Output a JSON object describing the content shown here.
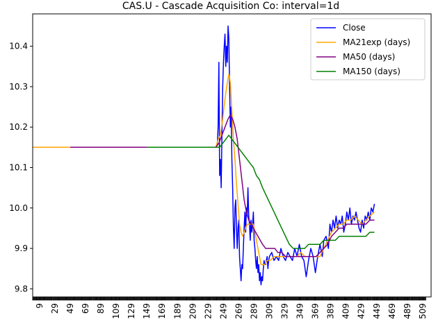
{
  "chart_data": {
    "type": "line",
    "title": "CAS.U - Cascade Acquisition Co: interval=1d",
    "xlabel": "",
    "ylabel": "",
    "xlim": [
      0,
      520
    ],
    "ylim": [
      9.78,
      10.48
    ],
    "x_ticks": [
      9,
      29,
      49,
      69,
      89,
      109,
      129,
      149,
      169,
      189,
      209,
      229,
      249,
      269,
      289,
      309,
      329,
      349,
      369,
      389,
      409,
      429,
      449,
      469,
      489,
      509
    ],
    "y_ticks": [
      9.8,
      9.9,
      10.0,
      10.1,
      10.2,
      10.3,
      10.4
    ],
    "grid": false,
    "legend_position": "top-right",
    "series": [
      {
        "name": "Close",
        "color": "#0000ff",
        "points": [
          [
            239,
            10.15
          ],
          [
            241,
            10.16
          ],
          [
            242,
            10.2
          ],
          [
            243,
            10.36
          ],
          [
            244,
            10.08
          ],
          [
            245,
            10.12
          ],
          [
            246,
            10.05
          ],
          [
            247,
            10.18
          ],
          [
            248,
            10.3
          ],
          [
            249,
            10.36
          ],
          [
            250,
            10.4
          ],
          [
            251,
            10.43
          ],
          [
            252,
            10.35
          ],
          [
            253,
            10.4
          ],
          [
            254,
            10.36
          ],
          [
            255,
            10.45
          ],
          [
            256,
            10.42
          ],
          [
            257,
            10.3
          ],
          [
            258,
            10.2
          ],
          [
            259,
            10.25
          ],
          [
            260,
            10.12
          ],
          [
            261,
            10.05
          ],
          [
            262,
            9.95
          ],
          [
            263,
            9.9
          ],
          [
            264,
            10.0
          ],
          [
            265,
            10.02
          ],
          [
            266,
            9.95
          ],
          [
            267,
            9.9
          ],
          [
            268,
            9.95
          ],
          [
            269,
            9.97
          ],
          [
            270,
            9.88
          ],
          [
            271,
            9.85
          ],
          [
            272,
            9.82
          ],
          [
            273,
            9.86
          ],
          [
            274,
            9.85
          ],
          [
            275,
            9.9
          ],
          [
            276,
            9.95
          ],
          [
            277,
            9.99
          ],
          [
            278,
            9.94
          ],
          [
            279,
            10.0
          ],
          [
            280,
            9.98
          ],
          [
            281,
            10.05
          ],
          [
            282,
            9.98
          ],
          [
            283,
            9.96
          ],
          [
            284,
            9.92
          ],
          [
            285,
            9.97
          ],
          [
            286,
            9.94
          ],
          [
            287,
            9.96
          ],
          [
            288,
            9.99
          ],
          [
            289,
            9.92
          ],
          [
            290,
            9.9
          ],
          [
            291,
            9.87
          ],
          [
            292,
            9.85
          ],
          [
            293,
            9.88
          ],
          [
            294,
            9.84
          ],
          [
            295,
            9.86
          ],
          [
            296,
            9.82
          ],
          [
            297,
            9.84
          ],
          [
            298,
            9.81
          ],
          [
            299,
            9.83
          ],
          [
            300,
            9.82
          ],
          [
            301,
            9.85
          ],
          [
            302,
            9.87
          ],
          [
            303,
            9.86
          ],
          [
            304,
            9.86
          ],
          [
            305,
            9.87
          ],
          [
            306,
            9.88
          ],
          [
            307,
            9.85
          ],
          [
            308,
            9.87
          ],
          [
            309,
            9.88
          ],
          [
            312,
            9.89
          ],
          [
            315,
            9.87
          ],
          [
            318,
            9.88
          ],
          [
            321,
            9.87
          ],
          [
            324,
            9.9
          ],
          [
            327,
            9.88
          ],
          [
            330,
            9.87
          ],
          [
            333,
            9.89
          ],
          [
            336,
            9.88
          ],
          [
            339,
            9.87
          ],
          [
            342,
            9.9
          ],
          [
            345,
            9.88
          ],
          [
            348,
            9.91
          ],
          [
            351,
            9.88
          ],
          [
            354,
            9.87
          ],
          [
            357,
            9.83
          ],
          [
            360,
            9.87
          ],
          [
            363,
            9.9
          ],
          [
            366,
            9.88
          ],
          [
            369,
            9.84
          ],
          [
            372,
            9.88
          ],
          [
            375,
            9.91
          ],
          [
            378,
            9.88
          ],
          [
            380,
            9.92
          ],
          [
            383,
            9.93
          ],
          [
            386,
            9.9
          ],
          [
            388,
            9.96
          ],
          [
            390,
            9.94
          ],
          [
            392,
            9.97
          ],
          [
            394,
            9.95
          ],
          [
            396,
            9.98
          ],
          [
            398,
            9.95
          ],
          [
            400,
            9.97
          ],
          [
            402,
            9.96
          ],
          [
            404,
            9.98
          ],
          [
            406,
            9.94
          ],
          [
            408,
            9.96
          ],
          [
            410,
            9.99
          ],
          [
            412,
            9.97
          ],
          [
            414,
            10.0
          ],
          [
            416,
            9.96
          ],
          [
            418,
            9.98
          ],
          [
            420,
            9.97
          ],
          [
            422,
            9.99
          ],
          [
            424,
            9.97
          ],
          [
            426,
            9.95
          ],
          [
            428,
            9.94
          ],
          [
            430,
            9.97
          ],
          [
            432,
            9.95
          ],
          [
            434,
            9.98
          ],
          [
            436,
            9.97
          ],
          [
            438,
            9.99
          ],
          [
            440,
            9.97
          ],
          [
            442,
            10.0
          ],
          [
            444,
            9.99
          ],
          [
            446,
            10.01
          ]
        ]
      },
      {
        "name": "MA21exp (days)",
        "color": "#ffa500",
        "points": [
          [
            0,
            10.15
          ],
          [
            50,
            10.15
          ],
          [
            100,
            10.15
          ],
          [
            150,
            10.15
          ],
          [
            200,
            10.15
          ],
          [
            239,
            10.15
          ],
          [
            242,
            10.17
          ],
          [
            245,
            10.18
          ],
          [
            248,
            10.22
          ],
          [
            251,
            10.27
          ],
          [
            254,
            10.31
          ],
          [
            256,
            10.33
          ],
          [
            258,
            10.31
          ],
          [
            260,
            10.24
          ],
          [
            262,
            10.17
          ],
          [
            264,
            10.12
          ],
          [
            266,
            10.06
          ],
          [
            268,
            10.01
          ],
          [
            270,
            9.96
          ],
          [
            272,
            9.94
          ],
          [
            274,
            9.93
          ],
          [
            276,
            9.94
          ],
          [
            278,
            9.95
          ],
          [
            280,
            9.96
          ],
          [
            282,
            9.96
          ],
          [
            284,
            9.96
          ],
          [
            286,
            9.96
          ],
          [
            288,
            9.96
          ],
          [
            290,
            9.94
          ],
          [
            292,
            9.92
          ],
          [
            294,
            9.9
          ],
          [
            296,
            9.88
          ],
          [
            298,
            9.86
          ],
          [
            300,
            9.86
          ],
          [
            303,
            9.86
          ],
          [
            306,
            9.87
          ],
          [
            310,
            9.87
          ],
          [
            315,
            9.88
          ],
          [
            320,
            9.88
          ],
          [
            325,
            9.88
          ],
          [
            330,
            9.88
          ],
          [
            335,
            9.88
          ],
          [
            340,
            9.88
          ],
          [
            345,
            9.88
          ],
          [
            350,
            9.89
          ],
          [
            355,
            9.88
          ],
          [
            360,
            9.88
          ],
          [
            365,
            9.88
          ],
          [
            370,
            9.88
          ],
          [
            375,
            9.88
          ],
          [
            380,
            9.9
          ],
          [
            385,
            9.92
          ],
          [
            390,
            9.94
          ],
          [
            395,
            9.95
          ],
          [
            400,
            9.96
          ],
          [
            405,
            9.96
          ],
          [
            410,
            9.97
          ],
          [
            415,
            9.97
          ],
          [
            420,
            9.98
          ],
          [
            425,
            9.97
          ],
          [
            430,
            9.96
          ],
          [
            435,
            9.97
          ],
          [
            440,
            9.98
          ],
          [
            446,
            9.99
          ]
        ]
      },
      {
        "name": "MA50 (days)",
        "color": "#800080",
        "points": [
          [
            49,
            10.15
          ],
          [
            100,
            10.15
          ],
          [
            150,
            10.15
          ],
          [
            200,
            10.15
          ],
          [
            239,
            10.15
          ],
          [
            243,
            10.16
          ],
          [
            247,
            10.18
          ],
          [
            251,
            10.2
          ],
          [
            255,
            10.22
          ],
          [
            258,
            10.23
          ],
          [
            261,
            10.22
          ],
          [
            264,
            10.2
          ],
          [
            267,
            10.17
          ],
          [
            270,
            10.12
          ],
          [
            273,
            10.07
          ],
          [
            276,
            10.02
          ],
          [
            279,
            9.99
          ],
          [
            282,
            9.97
          ],
          [
            285,
            9.96
          ],
          [
            288,
            9.95
          ],
          [
            291,
            9.94
          ],
          [
            294,
            9.93
          ],
          [
            297,
            9.92
          ],
          [
            300,
            9.91
          ],
          [
            304,
            9.9
          ],
          [
            308,
            9.9
          ],
          [
            312,
            9.9
          ],
          [
            316,
            9.9
          ],
          [
            320,
            9.89
          ],
          [
            325,
            9.89
          ],
          [
            330,
            9.88
          ],
          [
            335,
            9.88
          ],
          [
            340,
            9.88
          ],
          [
            345,
            9.88
          ],
          [
            350,
            9.88
          ],
          [
            355,
            9.88
          ],
          [
            360,
            9.88
          ],
          [
            365,
            9.88
          ],
          [
            370,
            9.88
          ],
          [
            375,
            9.89
          ],
          [
            380,
            9.9
          ],
          [
            385,
            9.91
          ],
          [
            390,
            9.93
          ],
          [
            395,
            9.94
          ],
          [
            400,
            9.95
          ],
          [
            405,
            9.95
          ],
          [
            410,
            9.96
          ],
          [
            415,
            9.96
          ],
          [
            420,
            9.96
          ],
          [
            425,
            9.96
          ],
          [
            430,
            9.96
          ],
          [
            435,
            9.96
          ],
          [
            440,
            9.97
          ],
          [
            446,
            9.97
          ]
        ]
      },
      {
        "name": "MA150 (days)",
        "color": "#008000",
        "points": [
          [
            149,
            10.15
          ],
          [
            180,
            10.15
          ],
          [
            210,
            10.15
          ],
          [
            239,
            10.15
          ],
          [
            244,
            10.15
          ],
          [
            248,
            10.16
          ],
          [
            252,
            10.17
          ],
          [
            256,
            10.18
          ],
          [
            260,
            10.17
          ],
          [
            264,
            10.16
          ],
          [
            268,
            10.15
          ],
          [
            272,
            10.14
          ],
          [
            276,
            10.13
          ],
          [
            280,
            10.12
          ],
          [
            284,
            10.11
          ],
          [
            288,
            10.1
          ],
          [
            292,
            10.08
          ],
          [
            296,
            10.07
          ],
          [
            300,
            10.05
          ],
          [
            305,
            10.03
          ],
          [
            310,
            10.01
          ],
          [
            315,
            9.99
          ],
          [
            320,
            9.97
          ],
          [
            325,
            9.95
          ],
          [
            330,
            9.93
          ],
          [
            335,
            9.91
          ],
          [
            340,
            9.9
          ],
          [
            345,
            9.9
          ],
          [
            350,
            9.9
          ],
          [
            355,
            9.9
          ],
          [
            360,
            9.91
          ],
          [
            365,
            9.91
          ],
          [
            370,
            9.91
          ],
          [
            375,
            9.91
          ],
          [
            380,
            9.92
          ],
          [
            385,
            9.92
          ],
          [
            390,
            9.92
          ],
          [
            395,
            9.92
          ],
          [
            400,
            9.93
          ],
          [
            405,
            9.93
          ],
          [
            410,
            9.93
          ],
          [
            415,
            9.93
          ],
          [
            420,
            9.93
          ],
          [
            425,
            9.93
          ],
          [
            430,
            9.93
          ],
          [
            435,
            9.93
          ],
          [
            440,
            9.94
          ],
          [
            446,
            9.94
          ]
        ]
      }
    ]
  }
}
